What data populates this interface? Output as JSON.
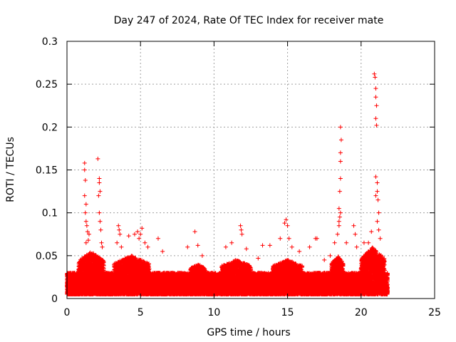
{
  "chart_data": {
    "type": "scatter",
    "title": "Day 247 of 2024, Rate Of TEC Index for receiver mate",
    "xlabel": "GPS time / hours",
    "ylabel": "ROTI / TECUs",
    "xlim": [
      0,
      25
    ],
    "ylim": [
      0,
      0.3
    ],
    "xticks": [
      0,
      5,
      10,
      15,
      20,
      25
    ],
    "xtick_labels": [
      "0",
      "5",
      "10",
      "15",
      "20",
      "25"
    ],
    "yticks": [
      0,
      0.05,
      0.1,
      0.15,
      0.2,
      0.25,
      0.3
    ],
    "ytick_labels": [
      "0",
      "0.05",
      "0.1",
      "0.15",
      "0.2",
      "0.25",
      "0.3"
    ],
    "grid": true,
    "marker": "+",
    "color": "#ff0000",
    "series": [
      {
        "name": "ROTI",
        "points": [
          [
            1.2,
            0.158
          ],
          [
            1.2,
            0.15
          ],
          [
            1.25,
            0.138
          ],
          [
            1.2,
            0.12
          ],
          [
            1.3,
            0.11
          ],
          [
            1.25,
            0.1
          ],
          [
            1.3,
            0.09
          ],
          [
            1.35,
            0.085
          ],
          [
            1.4,
            0.078
          ],
          [
            1.5,
            0.075
          ],
          [
            1.45,
            0.068
          ],
          [
            1.3,
            0.065
          ],
          [
            2.1,
            0.163
          ],
          [
            2.2,
            0.14
          ],
          [
            2.2,
            0.135
          ],
          [
            2.25,
            0.125
          ],
          [
            2.15,
            0.12
          ],
          [
            2.2,
            0.1
          ],
          [
            2.25,
            0.09
          ],
          [
            2.3,
            0.08
          ],
          [
            2.35,
            0.065
          ],
          [
            2.4,
            0.06
          ],
          [
            3.5,
            0.085
          ],
          [
            3.55,
            0.08
          ],
          [
            3.6,
            0.075
          ],
          [
            3.4,
            0.065
          ],
          [
            3.7,
            0.06
          ],
          [
            4.2,
            0.073
          ],
          [
            4.6,
            0.075
          ],
          [
            4.8,
            0.078
          ],
          [
            4.9,
            0.07
          ],
          [
            5.1,
            0.082
          ],
          [
            5.0,
            0.075
          ],
          [
            5.3,
            0.065
          ],
          [
            5.5,
            0.06
          ],
          [
            6.2,
            0.07
          ],
          [
            6.5,
            0.055
          ],
          [
            8.2,
            0.06
          ],
          [
            8.7,
            0.078
          ],
          [
            8.9,
            0.062
          ],
          [
            9.2,
            0.05
          ],
          [
            10.8,
            0.06
          ],
          [
            11.2,
            0.065
          ],
          [
            11.8,
            0.085
          ],
          [
            11.85,
            0.08
          ],
          [
            11.9,
            0.075
          ],
          [
            12.2,
            0.058
          ],
          [
            13.0,
            0.047
          ],
          [
            13.3,
            0.062
          ],
          [
            13.8,
            0.062
          ],
          [
            14.5,
            0.07
          ],
          [
            14.8,
            0.088
          ],
          [
            14.9,
            0.092
          ],
          [
            15.0,
            0.085
          ],
          [
            15.1,
            0.07
          ],
          [
            15.3,
            0.06
          ],
          [
            15.8,
            0.055
          ],
          [
            16.5,
            0.06
          ],
          [
            16.9,
            0.07
          ],
          [
            17.0,
            0.07
          ],
          [
            17.5,
            0.045
          ],
          [
            17.9,
            0.05
          ],
          [
            18.2,
            0.065
          ],
          [
            18.4,
            0.075
          ],
          [
            18.5,
            0.085
          ],
          [
            18.5,
            0.09
          ],
          [
            18.55,
            0.095
          ],
          [
            18.6,
            0.1
          ],
          [
            18.55,
            0.125
          ],
          [
            18.6,
            0.14
          ],
          [
            18.6,
            0.16
          ],
          [
            18.6,
            0.17
          ],
          [
            18.65,
            0.185
          ],
          [
            18.6,
            0.2
          ],
          [
            18.5,
            0.105
          ],
          [
            19.0,
            0.065
          ],
          [
            19.5,
            0.085
          ],
          [
            19.6,
            0.075
          ],
          [
            19.7,
            0.06
          ],
          [
            20.2,
            0.065
          ],
          [
            20.5,
            0.065
          ],
          [
            20.7,
            0.078
          ],
          [
            20.9,
            0.262
          ],
          [
            20.95,
            0.258
          ],
          [
            21.0,
            0.245
          ],
          [
            21.0,
            0.235
          ],
          [
            21.05,
            0.225
          ],
          [
            21.0,
            0.21
          ],
          [
            21.05,
            0.202
          ],
          [
            21.0,
            0.142
          ],
          [
            21.1,
            0.135
          ],
          [
            21.1,
            0.125
          ],
          [
            21.0,
            0.12
          ],
          [
            21.15,
            0.115
          ],
          [
            21.2,
            0.1
          ],
          [
            21.1,
            0.09
          ],
          [
            21.2,
            0.08
          ],
          [
            21.3,
            0.07
          ]
        ],
        "dense_band": {
          "x_start": 0,
          "x_end": 21.8,
          "baseline_min": 0.005,
          "baseline_max": 0.03,
          "elevated_regions": [
            {
              "x_start": 0.8,
              "x_end": 2.5,
              "level": 0.055
            },
            {
              "x_start": 3.2,
              "x_end": 5.6,
              "level": 0.05
            },
            {
              "x_start": 8.4,
              "x_end": 9.4,
              "level": 0.04
            },
            {
              "x_start": 10.5,
              "x_end": 12.5,
              "level": 0.045
            },
            {
              "x_start": 14.0,
              "x_end": 16.0,
              "level": 0.045
            },
            {
              "x_start": 18.0,
              "x_end": 18.8,
              "level": 0.05
            },
            {
              "x_start": 20.0,
              "x_end": 21.6,
              "level": 0.06
            }
          ]
        }
      }
    ]
  }
}
